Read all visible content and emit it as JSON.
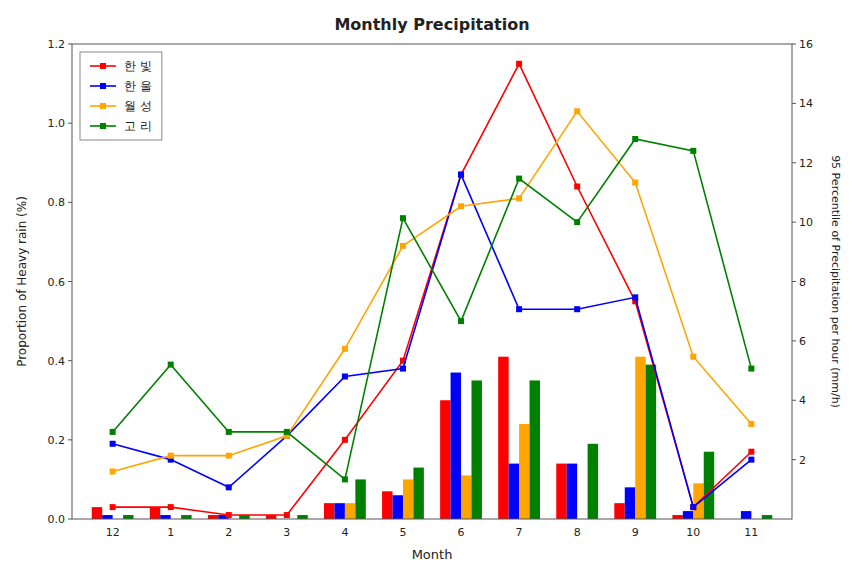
{
  "chart_data": {
    "type": "bar",
    "title": "Monthly Precipitation",
    "x_label": "Month",
    "y_label": "Proportion of Heavy rain (%)",
    "y2_label": "95 Percentile of Precipitation per hour (mm/h)",
    "categories": [
      "12",
      "1",
      "2",
      "3",
      "4",
      "5",
      "6",
      "7",
      "8",
      "9",
      "10",
      "11"
    ],
    "series": [
      {
        "type": "bar",
        "color": "#FF0000",
        "values": [
          0.03,
          0.03,
          0.01,
          0.01,
          0.04,
          0.07,
          0.3,
          0.41,
          0.14,
          0.04,
          0.01,
          0.0
        ]
      },
      {
        "type": "bar",
        "color": "#0000FF",
        "values": [
          0.01,
          0.01,
          0.01,
          0.0,
          0.04,
          0.06,
          0.37,
          0.14,
          0.14,
          0.08,
          0.02,
          0.02
        ]
      },
      {
        "type": "bar",
        "color": "#FFA500",
        "values": [
          0.0,
          0.0,
          0.0,
          0.0,
          0.04,
          0.1,
          0.11,
          0.24,
          0.0,
          0.41,
          0.09,
          0.0
        ]
      },
      {
        "type": "bar",
        "color": "#008000",
        "values": [
          0.01,
          0.01,
          0.01,
          0.01,
          0.1,
          0.13,
          0.35,
          0.35,
          0.19,
          0.39,
          0.17,
          0.01
        ]
      },
      {
        "type": "line",
        "name": "한 빛",
        "color": "#FF0000",
        "marker": "square",
        "values": [
          0.03,
          0.03,
          0.01,
          0.01,
          0.2,
          0.4,
          0.87,
          1.15,
          0.84,
          0.55,
          0.03,
          0.17
        ]
      },
      {
        "type": "line",
        "name": "한 울",
        "color": "#0000FF",
        "marker": "square",
        "values": [
          0.19,
          0.15,
          0.08,
          0.21,
          0.36,
          0.38,
          0.87,
          0.53,
          0.53,
          0.56,
          0.03,
          0.15
        ]
      },
      {
        "type": "line",
        "name": "월 성",
        "color": "#FFA500",
        "marker": "square",
        "values": [
          0.12,
          0.16,
          0.16,
          0.21,
          0.43,
          0.69,
          0.79,
          0.81,
          1.03,
          0.85,
          0.41,
          0.24
        ]
      },
      {
        "type": "line",
        "name": "고 리",
        "color": "#008000",
        "marker": "square",
        "values": [
          0.22,
          0.39,
          0.22,
          0.22,
          0.1,
          0.76,
          0.5,
          0.86,
          0.75,
          0.96,
          0.93,
          0.38
        ]
      }
    ],
    "ylim": [
      0.0,
      1.2
    ],
    "yticks": [
      {
        "value": 0.0,
        "label": "0.0"
      },
      0.2,
      0.4,
      0.6,
      0.8,
      {
        "value": 1.0,
        "label": "1.0"
      },
      1.2
    ],
    "y2lim": [
      0,
      16.0
    ],
    "y2ticks": [
      2,
      4,
      6,
      8,
      10,
      12,
      14,
      16
    ],
    "grid": false,
    "legend": "upper left"
  }
}
